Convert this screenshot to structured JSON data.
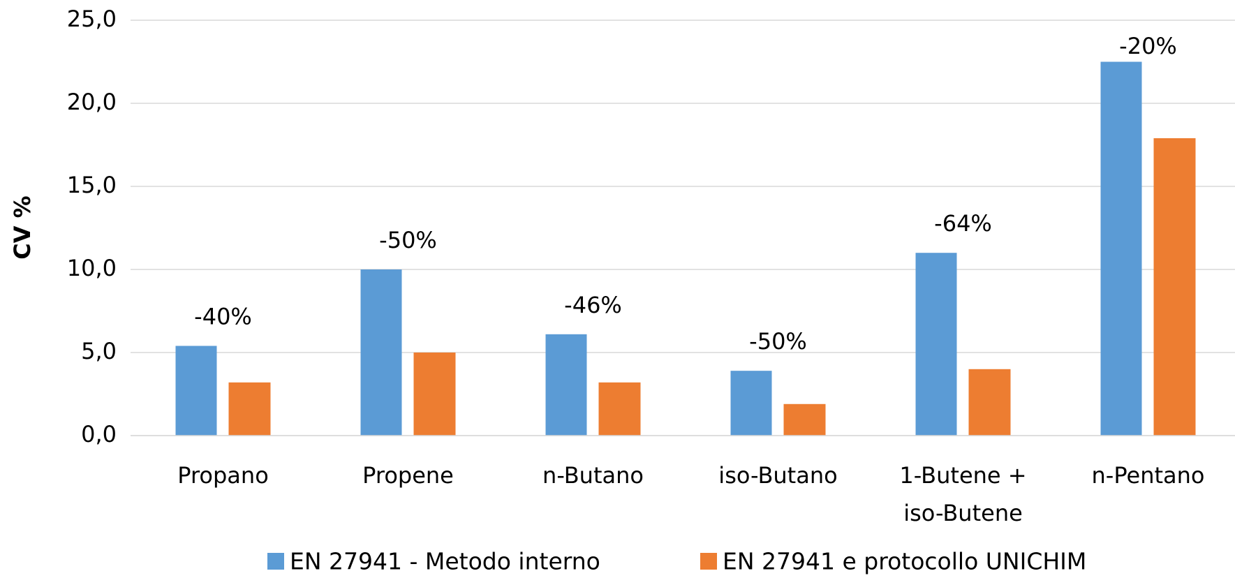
{
  "chart_data": {
    "type": "bar",
    "y_label": "CV %",
    "categories": [
      "Propano",
      "Propene",
      "n-Butano",
      "iso-Butano",
      "1-Butene +\niso-Butene",
      "n-Pentano"
    ],
    "series": [
      {
        "name": "EN 27941 - Metodo interno",
        "color": "#5b9bd5",
        "values": [
          5.4,
          10.0,
          6.1,
          3.9,
          11.0,
          22.5
        ]
      },
      {
        "name": "EN 27941 e protocollo UNICHIM",
        "color": "#ed7d31",
        "values": [
          3.2,
          5.0,
          3.2,
          1.9,
          4.0,
          17.9
        ]
      }
    ],
    "annotations": [
      "-40%",
      "-50%",
      "-46%",
      "-50%",
      "-64%",
      "-20%"
    ],
    "ylim": [
      0,
      25
    ],
    "yticks": [
      {
        "value": 0,
        "label": "0,0"
      },
      {
        "value": 5,
        "label": "5,0"
      },
      {
        "value": 10,
        "label": "10,0"
      },
      {
        "value": 15,
        "label": "15,0"
      },
      {
        "value": 20,
        "label": "20,0"
      },
      {
        "value": 25,
        "label": "25,0"
      }
    ],
    "grid": true
  }
}
